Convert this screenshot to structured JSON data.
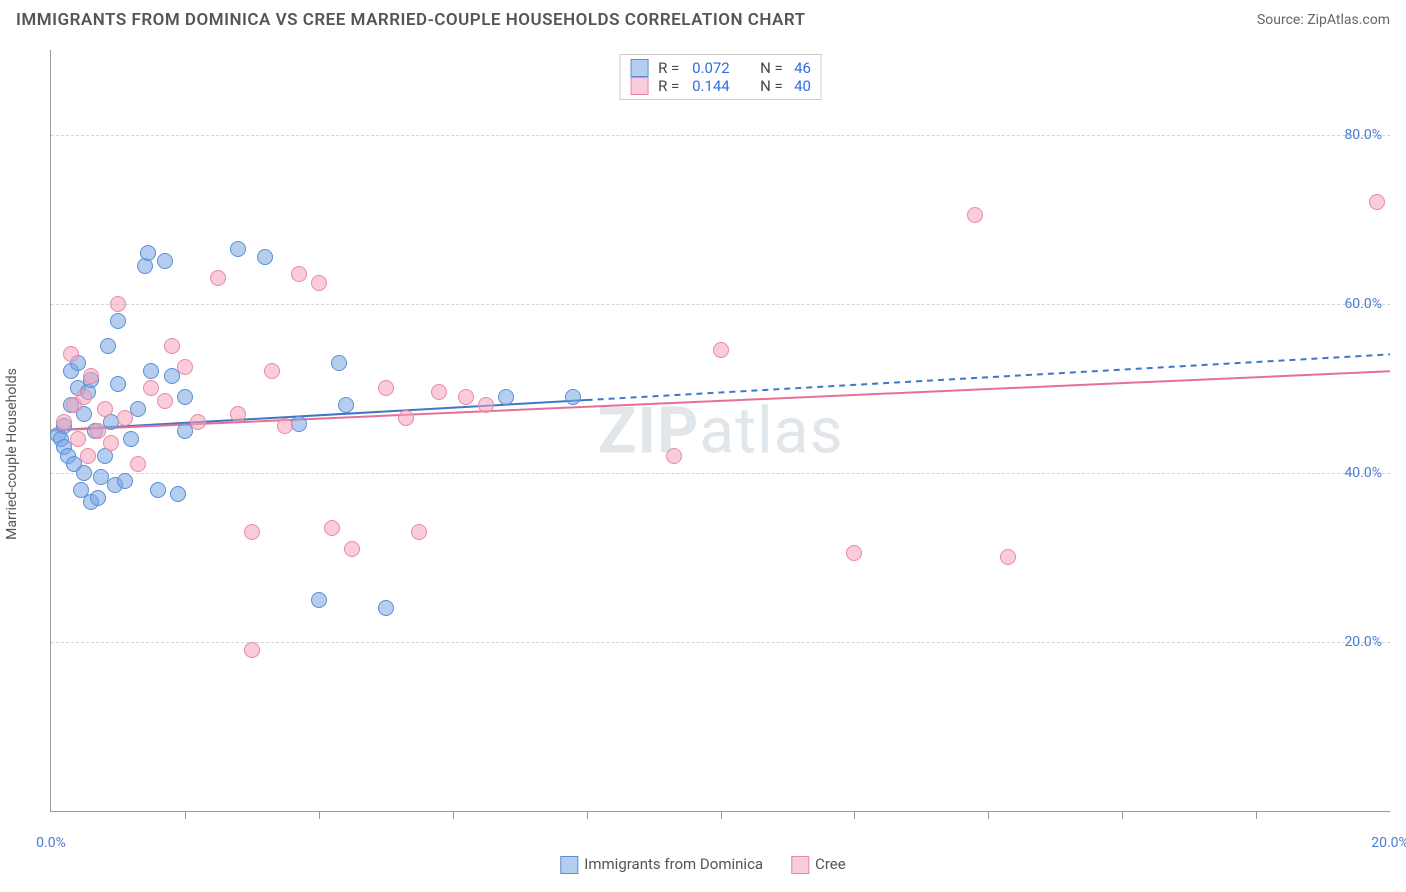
{
  "title": "IMMIGRANTS FROM DOMINICA VS CREE MARRIED-COUPLE HOUSEHOLDS CORRELATION CHART",
  "source": "Source: ZipAtlas.com",
  "watermark_prefix": "ZIP",
  "watermark_suffix": "atlas",
  "chart": {
    "type": "scatter",
    "background_color": "#ffffff",
    "grid_color": "#d5d5d5",
    "axis_color": "#999999",
    "tick_label_color": "#4a7bd0",
    "ylabel": "Married-couple Households",
    "ylabel_fontsize": 14,
    "xlim": [
      0.0,
      20.0
    ],
    "ylim": [
      0.0,
      90.0
    ],
    "yticks": [
      20.0,
      40.0,
      60.0,
      80.0
    ],
    "ytick_labels": [
      "20.0%",
      "40.0%",
      "60.0%",
      "80.0%"
    ],
    "xticks_minor": [
      2.0,
      4.0,
      6.0,
      8.0,
      10.0,
      12.0,
      14.0,
      16.0,
      18.0
    ],
    "xtick_labels": [
      {
        "x": 0.0,
        "label": "0.0%"
      },
      {
        "x": 20.0,
        "label": "20.0%"
      }
    ],
    "marker_radius": 8,
    "series": [
      {
        "key": "dominica",
        "name": "Immigrants from Dominica",
        "fill_color": "rgba(120,165,225,0.55)",
        "stroke_color": "#5a8fd6",
        "line_color": "#3f76c9",
        "line_width": 2,
        "line_dash_after_x": 8.0,
        "R_label": "R =",
        "R_value": "0.072",
        "N_label": "N =",
        "N_value": "46",
        "trend": {
          "x1": 0.0,
          "y1": 45.0,
          "x2": 20.0,
          "y2": 54.0
        },
        "points": [
          [
            0.1,
            44.5
          ],
          [
            0.15,
            44.0
          ],
          [
            0.2,
            43.0
          ],
          [
            0.2,
            45.5
          ],
          [
            0.25,
            42.0
          ],
          [
            0.3,
            48.0
          ],
          [
            0.3,
            52.0
          ],
          [
            0.35,
            41.0
          ],
          [
            0.4,
            50.0
          ],
          [
            0.4,
            53.0
          ],
          [
            0.45,
            38.0
          ],
          [
            0.5,
            40.0
          ],
          [
            0.5,
            47.0
          ],
          [
            0.55,
            49.5
          ],
          [
            0.6,
            51.0
          ],
          [
            0.6,
            36.5
          ],
          [
            0.65,
            45.0
          ],
          [
            0.7,
            37.0
          ],
          [
            0.75,
            39.5
          ],
          [
            0.8,
            42.0
          ],
          [
            0.85,
            55.0
          ],
          [
            0.9,
            46.0
          ],
          [
            0.95,
            38.5
          ],
          [
            1.0,
            50.5
          ],
          [
            1.0,
            58.0
          ],
          [
            1.1,
            39.0
          ],
          [
            1.2,
            44.0
          ],
          [
            1.3,
            47.5
          ],
          [
            1.4,
            64.5
          ],
          [
            1.45,
            66.0
          ],
          [
            1.5,
            52.0
          ],
          [
            1.6,
            38.0
          ],
          [
            1.7,
            65.0
          ],
          [
            1.8,
            51.5
          ],
          [
            1.9,
            37.5
          ],
          [
            2.0,
            45.0
          ],
          [
            2.0,
            49.0
          ],
          [
            2.8,
            66.5
          ],
          [
            3.2,
            65.5
          ],
          [
            3.7,
            45.8
          ],
          [
            4.0,
            25.0
          ],
          [
            4.3,
            53.0
          ],
          [
            4.4,
            48.0
          ],
          [
            5.0,
            24.0
          ],
          [
            6.8,
            49.0
          ],
          [
            7.8,
            49.0
          ]
        ]
      },
      {
        "key": "cree",
        "name": "Cree",
        "fill_color": "rgba(245,160,185,0.55)",
        "stroke_color": "#e88aa5",
        "line_color": "#e76f95",
        "line_width": 2,
        "R_label": "R =",
        "R_value": "0.144",
        "N_label": "N =",
        "N_value": "40",
        "trend": {
          "x1": 0.0,
          "y1": 45.0,
          "x2": 20.0,
          "y2": 52.0
        },
        "points": [
          [
            0.2,
            46.0
          ],
          [
            0.3,
            54.0
          ],
          [
            0.35,
            48.0
          ],
          [
            0.4,
            44.0
          ],
          [
            0.5,
            49.0
          ],
          [
            0.55,
            42.0
          ],
          [
            0.6,
            51.5
          ],
          [
            0.7,
            45.0
          ],
          [
            0.8,
            47.5
          ],
          [
            0.9,
            43.5
          ],
          [
            1.0,
            60.0
          ],
          [
            1.1,
            46.5
          ],
          [
            1.3,
            41.0
          ],
          [
            1.5,
            50.0
          ],
          [
            1.7,
            48.5
          ],
          [
            1.8,
            55.0
          ],
          [
            2.0,
            52.5
          ],
          [
            2.2,
            46.0
          ],
          [
            2.5,
            63.0
          ],
          [
            2.8,
            47.0
          ],
          [
            3.0,
            33.0
          ],
          [
            3.0,
            19.0
          ],
          [
            3.3,
            52.0
          ],
          [
            3.5,
            45.5
          ],
          [
            3.7,
            63.5
          ],
          [
            4.0,
            62.5
          ],
          [
            4.2,
            33.5
          ],
          [
            4.5,
            31.0
          ],
          [
            5.0,
            50.0
          ],
          [
            5.3,
            46.5
          ],
          [
            5.5,
            33.0
          ],
          [
            5.8,
            49.5
          ],
          [
            6.2,
            49.0
          ],
          [
            6.5,
            48.0
          ],
          [
            9.3,
            42.0
          ],
          [
            10.0,
            54.5
          ],
          [
            12.0,
            30.5
          ],
          [
            13.8,
            70.5
          ],
          [
            14.3,
            30.0
          ],
          [
            19.8,
            72.0
          ]
        ]
      }
    ]
  }
}
